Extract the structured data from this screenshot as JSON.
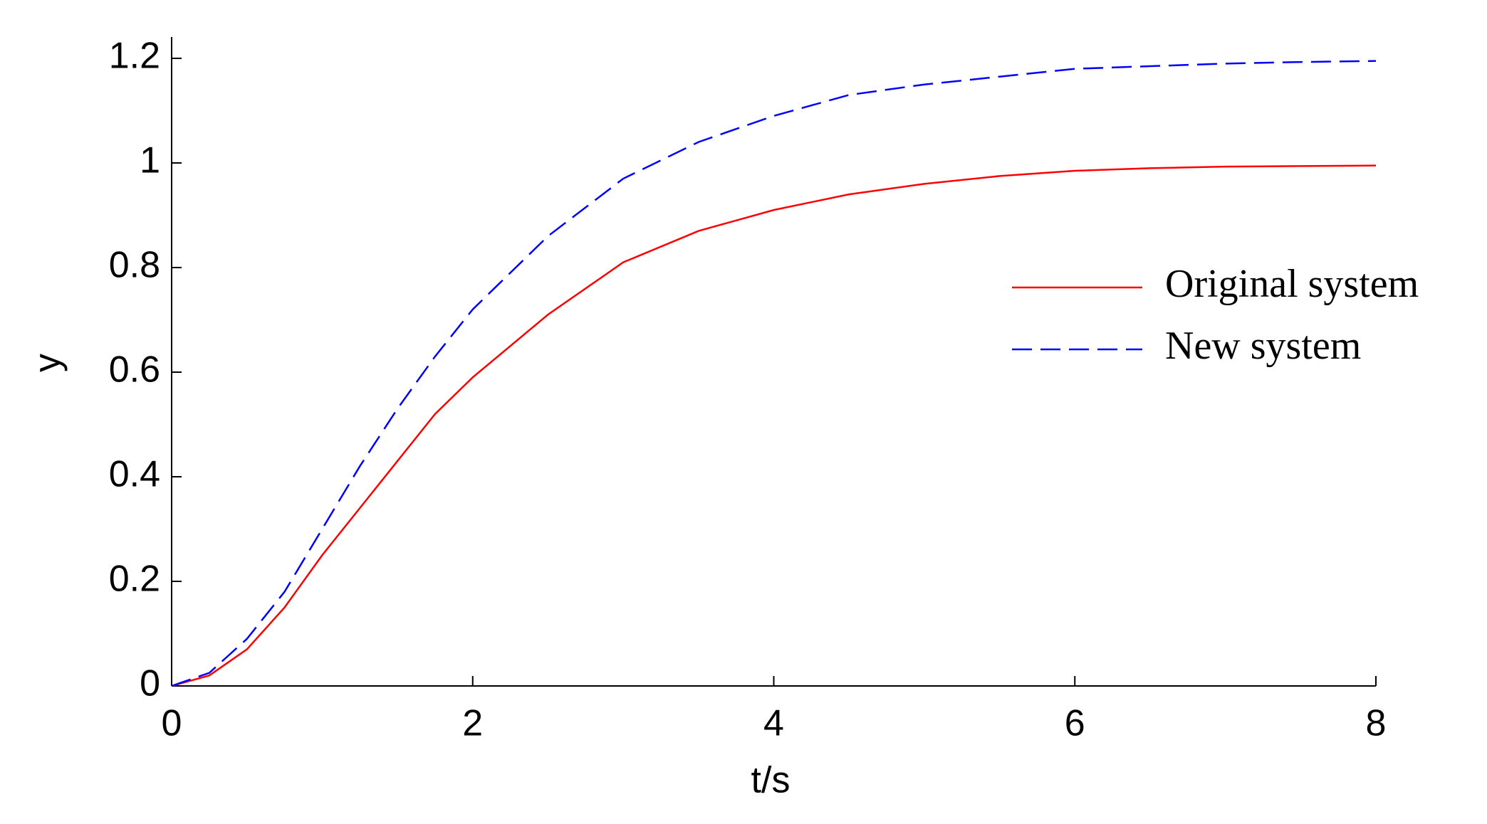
{
  "chart_data": {
    "type": "line",
    "xlabel": "t/s",
    "ylabel": "y",
    "x": [
      0,
      0.25,
      0.5,
      0.75,
      1,
      1.25,
      1.5,
      1.75,
      2,
      2.5,
      3,
      3.5,
      4,
      4.5,
      5,
      5.5,
      6,
      6.5,
      7,
      7.5,
      8
    ],
    "series": [
      {
        "name": "Original system",
        "color": "#ff0000",
        "dash": false,
        "values": [
          0,
          0.02,
          0.07,
          0.15,
          0.25,
          0.34,
          0.43,
          0.52,
          0.59,
          0.71,
          0.81,
          0.87,
          0.91,
          0.94,
          0.96,
          0.975,
          0.985,
          0.99,
          0.993,
          0.994,
          0.995
        ]
      },
      {
        "name": "New system",
        "color": "#0000ff",
        "dash": true,
        "values": [
          0,
          0.025,
          0.09,
          0.18,
          0.3,
          0.42,
          0.53,
          0.63,
          0.72,
          0.86,
          0.97,
          1.04,
          1.09,
          1.13,
          1.15,
          1.165,
          1.18,
          1.185,
          1.19,
          1.193,
          1.195
        ]
      }
    ],
    "xlim": [
      0,
      8
    ],
    "ylim": [
      0,
      1.2
    ],
    "xticks": [
      0,
      2,
      4,
      6,
      8
    ],
    "yticks": [
      0,
      0.2,
      0.4,
      0.6,
      0.8,
      1,
      1.2
    ],
    "legend": "right"
  }
}
